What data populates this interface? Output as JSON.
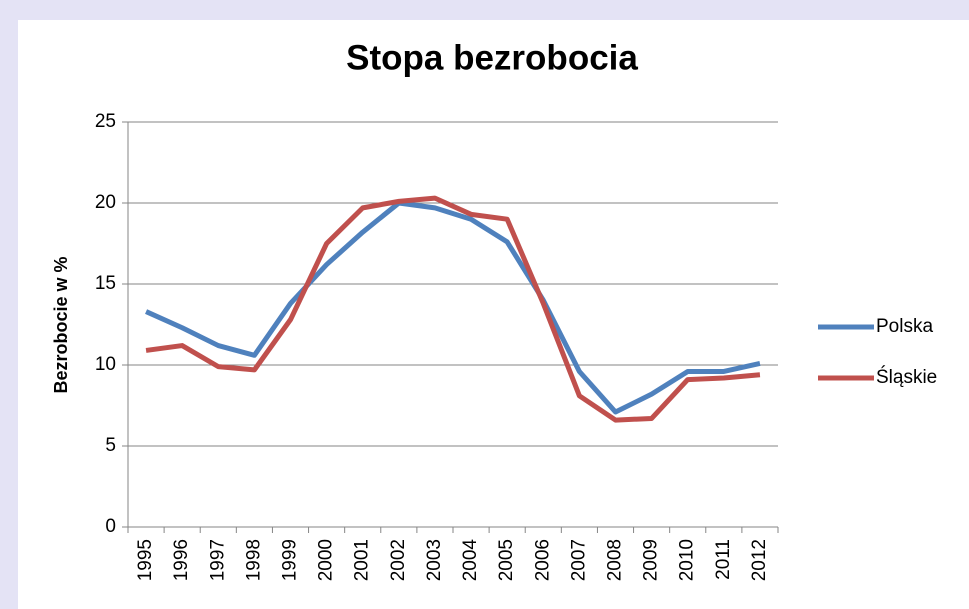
{
  "chart_data": {
    "type": "line",
    "title": "Stopa bezrobocia",
    "ylabel": "Bezrobocie w %",
    "categories": [
      "1995",
      "1996",
      "1997",
      "1998",
      "1999",
      "2000",
      "2001",
      "2002",
      "2003",
      "2004",
      "2005",
      "2006",
      "2007",
      "2008",
      "2009",
      "2010",
      "2011",
      "2012"
    ],
    "series": [
      {
        "name": "Polska",
        "color": "#4f81bd",
        "values": [
          13.3,
          12.3,
          11.2,
          10.6,
          13.8,
          16.2,
          18.2,
          20.0,
          19.7,
          19.0,
          17.6,
          14.0,
          9.6,
          7.1,
          8.2,
          9.6,
          9.6,
          10.1
        ]
      },
      {
        "name": "Śląskie",
        "color": "#c0504d",
        "values": [
          10.9,
          11.2,
          9.9,
          9.7,
          12.8,
          17.5,
          19.7,
          20.1,
          20.3,
          19.3,
          19.0,
          13.8,
          8.1,
          6.6,
          6.7,
          9.1,
          9.2,
          9.4
        ]
      }
    ],
    "ylim": [
      0,
      25
    ],
    "yticks": [
      0,
      5,
      10,
      15,
      20,
      25
    ],
    "grid": true,
    "legend": "right"
  }
}
